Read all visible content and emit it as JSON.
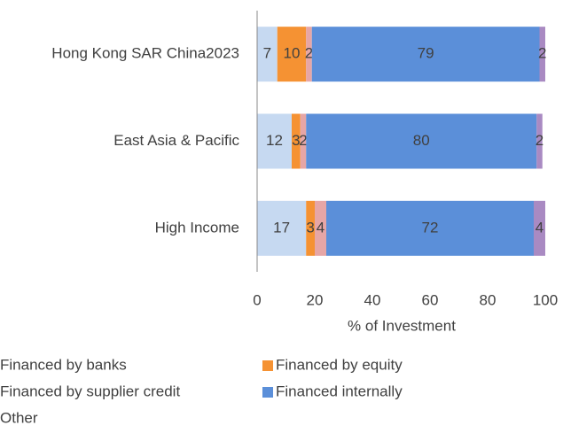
{
  "chart_data": {
    "type": "stacked-bar-horizontal",
    "categories": [
      "Hong Kong SAR China2023",
      "East Asia & Pacific",
      "High Income"
    ],
    "series": [
      {
        "name": "Financed by banks",
        "color": "#c6d9f1",
        "values": [
          7,
          12,
          17
        ]
      },
      {
        "name": "Financed by equity",
        "color": "#f59233",
        "values": [
          10,
          3,
          3
        ]
      },
      {
        "name": "Financed by supplier credit",
        "color": "#e6a6a6",
        "values": [
          2,
          2,
          4
        ]
      },
      {
        "name": "Financed internally",
        "color": "#5b8fd9",
        "values": [
          79,
          80,
          72
        ]
      },
      {
        "name": "Other",
        "color": "#a98ac2",
        "values": [
          2,
          2,
          4
        ]
      }
    ],
    "xlabel": "% of Investment",
    "xlim": [
      0,
      100
    ],
    "xticks": [
      0,
      20,
      40,
      60,
      80,
      100
    ]
  }
}
